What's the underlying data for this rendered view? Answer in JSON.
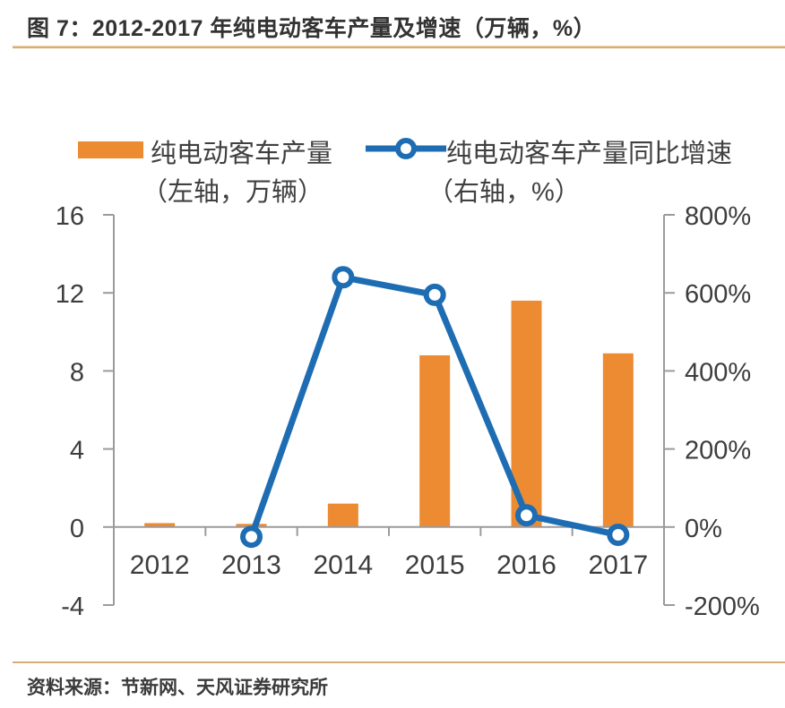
{
  "title": "图 7：2012-2017 年纯电动客车产量及增速（万辆，%）",
  "source": "资料来源：节新网、天风证券研究所",
  "legend": {
    "bar_label": "纯电动客车产量",
    "bar_sublabel": "（左轴，万辆）",
    "line_label": "纯电动客车产量同比增速",
    "line_sublabel": "（右轴，%）"
  },
  "colors": {
    "bar": "#ED8B32",
    "line": "#1E6DB3",
    "axis": "#9B9B9B",
    "tick_text": "#3D3D3D",
    "title_text": "#333333",
    "separator": "#D8A967"
  },
  "chart_data": {
    "type": "bar+line",
    "title": "2012-2017 年纯电动客车产量及增速（万辆，%）",
    "categories": [
      "2012",
      "2013",
      "2014",
      "2015",
      "2016",
      "2017"
    ],
    "series": [
      {
        "name": "纯电动客车产量",
        "type": "bar",
        "axis": "left",
        "unit": "万辆",
        "values": [
          0.2,
          0.16,
          1.2,
          8.8,
          11.6,
          8.9
        ]
      },
      {
        "name": "纯电动客车产量同比增速",
        "type": "line",
        "axis": "right",
        "unit": "%",
        "values": [
          null,
          -25,
          640,
          595,
          30,
          -20
        ]
      }
    ],
    "left_axis": {
      "ticks": [
        16,
        12,
        8,
        4,
        0,
        -4
      ],
      "min": -4,
      "max": 16
    },
    "right_axis": {
      "tick_labels": [
        "800%",
        "600%",
        "400%",
        "200%",
        "0%",
        "-200%"
      ],
      "tick_values": [
        800,
        600,
        400,
        200,
        0,
        -200
      ],
      "min": -200,
      "max": 800
    },
    "grid": false,
    "legend_position": "top"
  }
}
